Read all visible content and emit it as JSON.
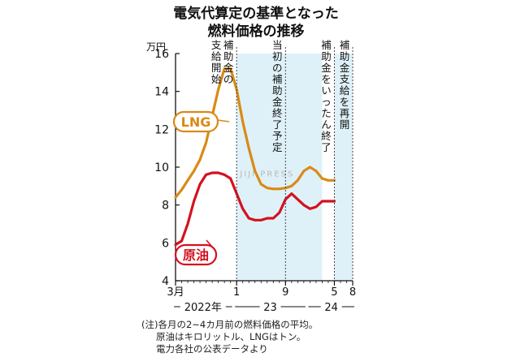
{
  "chart_data": {
    "type": "line",
    "title_lines": [
      "電気代算定の基準となった",
      "燃料価格の推移"
    ],
    "unit_label": "万円",
    "ylim": [
      4,
      16
    ],
    "y_ticks": [
      "4",
      "6",
      "8",
      "10",
      "12",
      "14",
      "16"
    ],
    "x_month_ticks": [
      "3月",
      "1",
      "9",
      "5",
      "8"
    ],
    "x_year_labels": [
      "2022年",
      "23",
      "24"
    ],
    "x_start": "2022-03",
    "x_end": "2024-08",
    "grid": false,
    "shaded_periods": [
      {
        "from": "2023-01",
        "to": "2024-03"
      },
      {
        "from": "2024-05",
        "to": "2024-08"
      }
    ],
    "series": [
      {
        "name": "LNG",
        "color": "#d98a14",
        "x": [
          "2022-03",
          "2022-04",
          "2022-05",
          "2022-06",
          "2022-07",
          "2022-08",
          "2022-09",
          "2022-10",
          "2022-11",
          "2022-12",
          "2023-01",
          "2023-02",
          "2023-03",
          "2023-04",
          "2023-05",
          "2023-06",
          "2023-07",
          "2023-08",
          "2023-09",
          "2023-10",
          "2023-11",
          "2023-12",
          "2024-01",
          "2024-02",
          "2024-03",
          "2024-04",
          "2024-05"
        ],
        "values": [
          8.4,
          8.8,
          9.3,
          9.8,
          10.4,
          11.3,
          12.7,
          14.1,
          15.2,
          15.2,
          14.1,
          12.4,
          11.0,
          9.8,
          9.1,
          8.9,
          8.85,
          8.85,
          8.9,
          9.0,
          9.3,
          9.8,
          10.0,
          9.8,
          9.4,
          9.3,
          9.3
        ]
      },
      {
        "name": "原油",
        "color": "#d4111e",
        "x": [
          "2022-03",
          "2022-04",
          "2022-05",
          "2022-06",
          "2022-07",
          "2022-08",
          "2022-09",
          "2022-10",
          "2022-11",
          "2022-12",
          "2023-01",
          "2023-02",
          "2023-03",
          "2023-04",
          "2023-05",
          "2023-06",
          "2023-07",
          "2023-08",
          "2023-09",
          "2023-10",
          "2023-11",
          "2023-12",
          "2024-01",
          "2024-02",
          "2024-03",
          "2024-04",
          "2024-05"
        ],
        "values": [
          5.9,
          6.1,
          7.0,
          8.2,
          9.1,
          9.6,
          9.7,
          9.7,
          9.6,
          9.4,
          8.6,
          7.8,
          7.3,
          7.2,
          7.2,
          7.3,
          7.3,
          7.6,
          8.3,
          8.6,
          8.3,
          8.0,
          7.8,
          7.9,
          8.2,
          8.2,
          8.2
        ]
      }
    ],
    "annotations": [
      {
        "text": "補助金の支給開始",
        "at": "2023-01"
      },
      {
        "text": "当初の補助金終了予定",
        "at": "2023-09"
      },
      {
        "text": "補助金をいったん終了",
        "at": "2024-05"
      },
      {
        "text": "補助金支給を再開",
        "at": "2024-08"
      }
    ],
    "watermark": "JIJI PRESS"
  },
  "footnote": {
    "line1": "(注)各月の2~4カ月前の燃料価格の平均。",
    "line2": "原油はキロリットル、LNGはトン。",
    "line3": "電力各社の公表データより"
  }
}
